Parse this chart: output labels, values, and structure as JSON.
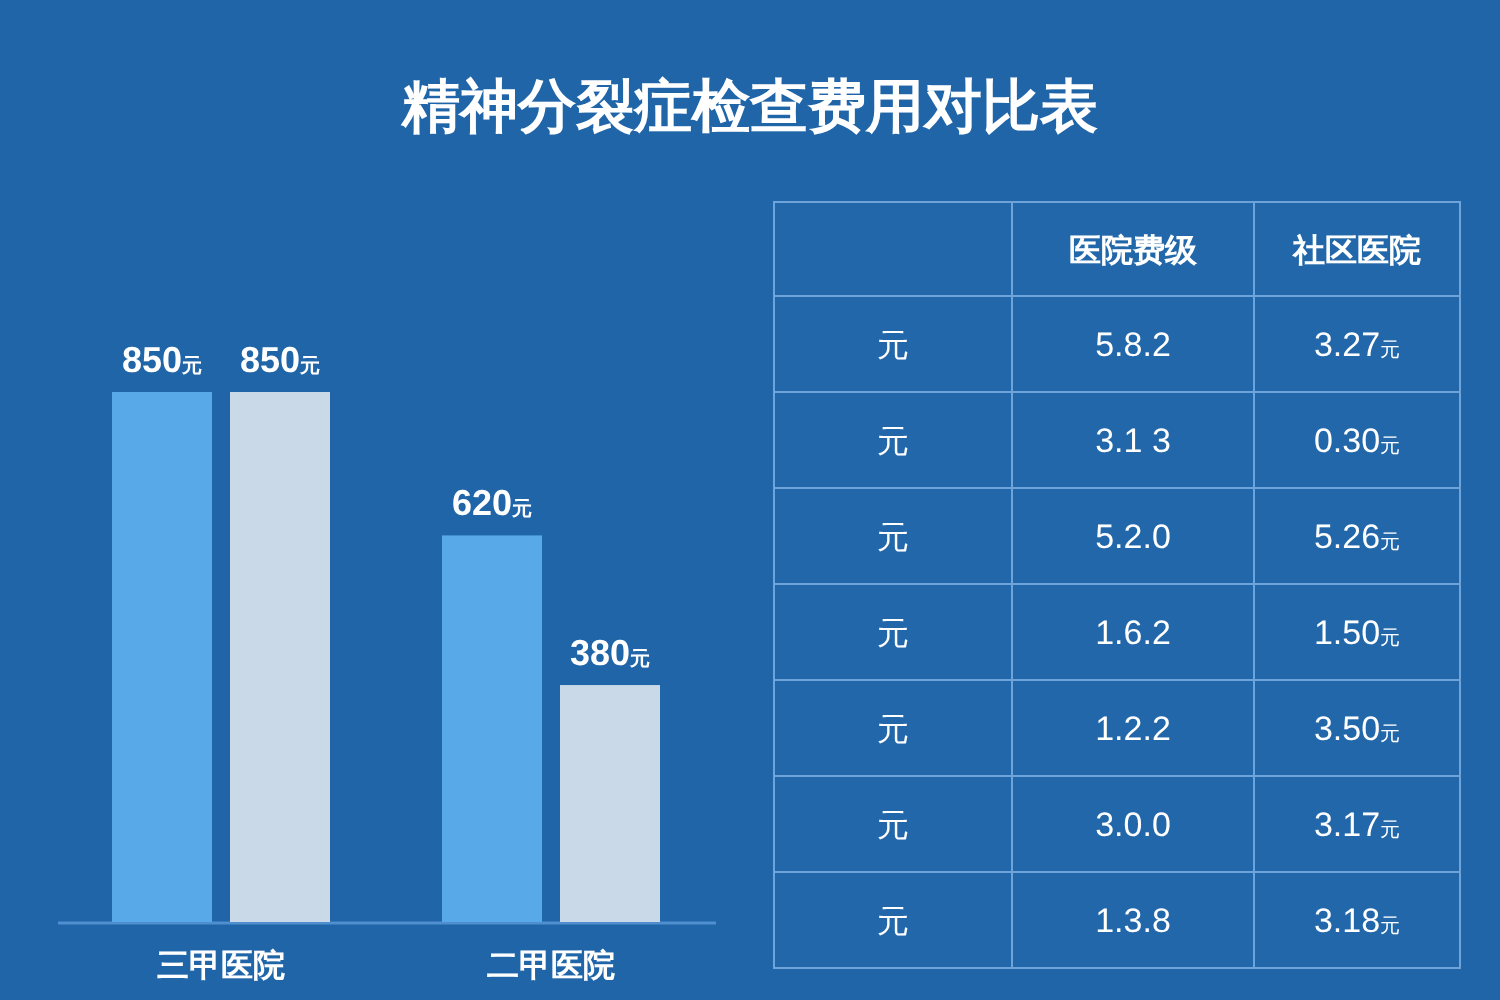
{
  "chart_data": [
    {
      "type": "bar",
      "title": "精神分裂症检查费用对比表",
      "categories": [
        "三甲医院",
        "二甲医院"
      ],
      "series": [
        {
          "color": "#58a9e8",
          "values": [
            850,
            620
          ],
          "value_labels": [
            "850元",
            "620元"
          ]
        },
        {
          "color": "#c9d9e8",
          "values": [
            850,
            380
          ],
          "value_labels": [
            "850元",
            "380元"
          ]
        }
      ]
    },
    {
      "type": "other",
      "categories": [
        null,
        "医院费级",
        "社区医院"
      ],
      "y_categories": [
        "元",
        "元",
        "元",
        "元",
        "元",
        "元",
        "元"
      ],
      "cell_labels": [
        [
          "5.8.2",
          "3.27元"
        ],
        [
          "3.1 3",
          "0.30元"
        ],
        [
          "5.2.0",
          "5.26元"
        ],
        [
          "1.6.2",
          "1.50元"
        ],
        [
          "1.2.2",
          "3.50元"
        ],
        [
          "3.0.0",
          "3.17元"
        ],
        [
          "1.3.8",
          "3.18元"
        ]
      ]
    }
  ]
}
